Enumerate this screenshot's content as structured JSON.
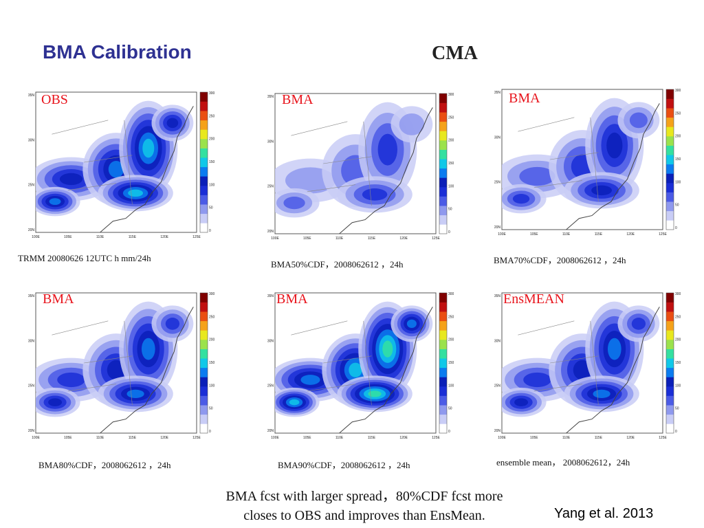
{
  "slide": {
    "title": "BMA Calibration",
    "org": "CMA",
    "summary_line1": "BMA fcst with larger spread，80%CDF fcst  more",
    "summary_line2": "closes to OBS and improves than EnsMean.",
    "citation": "Yang et al. 2013"
  },
  "map_axes": {
    "lat_ticks": [
      "35N",
      "30N",
      "25N",
      "20N"
    ],
    "lon_ticks": [
      "100E",
      "105E",
      "110E",
      "115E",
      "120E",
      "125E"
    ],
    "colorbar_ticks": [
      "300",
      "250",
      "200",
      "150",
      "100",
      "50",
      "0"
    ],
    "colorbar_colors": [
      "#ffffff",
      "#c9cdf6",
      "#8f99ee",
      "#4b5be6",
      "#1a2ed6",
      "#0a1fb8",
      "#0b7cf0",
      "#10c8e8",
      "#34e0a0",
      "#9be24c",
      "#e8e81e",
      "#f5a21a",
      "#ea4e12",
      "#c01010",
      "#800000"
    ]
  },
  "panels": [
    {
      "id": "obs",
      "tag": "OBS",
      "caption": "TRMM 20080626 12UTC h mm/24h",
      "intensity": 0.9
    },
    {
      "id": "bma50",
      "tag": "BMA",
      "caption": "BMA50%CDF，2008062612 ，24h",
      "intensity": 0.25
    },
    {
      "id": "bma70",
      "tag": "BMA",
      "caption": "BMA70%CDF，2008062612 ，24h",
      "intensity": 0.55
    },
    {
      "id": "bma80",
      "tag": "BMA",
      "caption": "BMA80%CDF，2008062612 ，24h",
      "intensity": 0.7
    },
    {
      "id": "bma90",
      "tag": "BMA",
      "caption": "BMA90%CDF，2008062612 ，24h",
      "intensity": 0.95
    },
    {
      "id": "ensmean",
      "tag": "EnsMEAN",
      "caption": "ensemble mean，  2008062612，24h",
      "intensity": 0.6
    }
  ]
}
